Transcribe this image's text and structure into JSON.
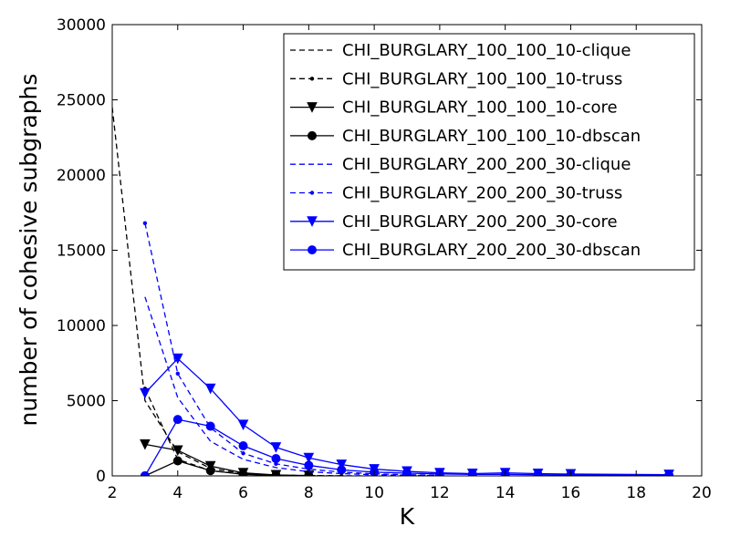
{
  "chart_data": {
    "type": "line",
    "title": "",
    "xlabel": "K",
    "ylabel": "number of cohesive subgraphs",
    "xlim": [
      2,
      20
    ],
    "ylim": [
      0,
      30000
    ],
    "xticks": [
      2,
      4,
      6,
      8,
      10,
      12,
      14,
      16,
      18,
      20
    ],
    "yticks": [
      0,
      5000,
      10000,
      15000,
      20000,
      25000,
      30000
    ],
    "x_tick_labels": [
      "2",
      "4",
      "6",
      "8",
      "10",
      "12",
      "14",
      "16",
      "18",
      "20"
    ],
    "y_tick_labels": [
      "0",
      "5000",
      "10000",
      "15000",
      "20000",
      "25000",
      "30000"
    ],
    "grid": false,
    "legend_position": "top-right",
    "series": [
      {
        "name": "CHI_BURGLARY_100_100_10-clique",
        "color": "#000000",
        "line": "dashed",
        "marker": "none",
        "x": [
          2,
          3,
          4,
          5,
          6,
          7,
          8,
          9,
          10
        ],
        "y": [
          24500,
          5000,
          1600,
          500,
          150,
          50,
          20,
          8,
          3
        ]
      },
      {
        "name": "CHI_BURGLARY_100_100_10-truss",
        "color": "#000000",
        "line": "dashed",
        "marker": "dot",
        "x": [
          3,
          4,
          5,
          6,
          7,
          8,
          9
        ],
        "y": [
          5800,
          1100,
          350,
          120,
          40,
          15,
          5
        ]
      },
      {
        "name": "CHI_BURGLARY_100_100_10-core",
        "color": "#000000",
        "line": "solid",
        "marker": "triangle-down",
        "x": [
          3,
          4,
          5,
          6,
          7,
          8
        ],
        "y": [
          2100,
          1700,
          650,
          200,
          60,
          20
        ]
      },
      {
        "name": "CHI_BURGLARY_100_100_10-dbscan",
        "color": "#000000",
        "line": "solid",
        "marker": "circle",
        "x": [
          3,
          4,
          5,
          6,
          7,
          8
        ],
        "y": [
          0,
          1000,
          350,
          100,
          30,
          10
        ]
      },
      {
        "name": "CHI_BURGLARY_200_200_30-clique",
        "color": "#0000ff",
        "line": "dashed",
        "marker": "none",
        "x": [
          3,
          4,
          5,
          6,
          7,
          8,
          9,
          10,
          11,
          12
        ],
        "y": [
          11900,
          5200,
          2300,
          1100,
          550,
          280,
          150,
          80,
          40,
          20
        ]
      },
      {
        "name": "CHI_BURGLARY_200_200_30-truss",
        "color": "#0000ff",
        "line": "dashed",
        "marker": "dot",
        "x": [
          3,
          4,
          5,
          6,
          7,
          8,
          9,
          10,
          11,
          12
        ],
        "y": [
          16800,
          6800,
          3200,
          1500,
          800,
          450,
          250,
          140,
          80,
          40
        ]
      },
      {
        "name": "CHI_BURGLARY_200_200_30-core",
        "color": "#0000ff",
        "line": "solid",
        "marker": "triangle-down",
        "x": [
          3,
          4,
          5,
          6,
          7,
          8,
          9,
          10,
          11,
          12,
          13,
          14,
          15,
          16,
          19
        ],
        "y": [
          5500,
          7800,
          5800,
          3400,
          1900,
          1200,
          750,
          450,
          300,
          200,
          150,
          200,
          150,
          120,
          80
        ]
      },
      {
        "name": "CHI_BURGLARY_200_200_30-dbscan",
        "color": "#0000ff",
        "line": "solid",
        "marker": "circle",
        "x": [
          3,
          4,
          5,
          6,
          7,
          8,
          9,
          10,
          11,
          12,
          13,
          14,
          15,
          16,
          19
        ],
        "y": [
          0,
          3750,
          3300,
          2000,
          1150,
          700,
          400,
          250,
          180,
          130,
          100,
          100,
          80,
          60,
          40
        ]
      }
    ]
  }
}
